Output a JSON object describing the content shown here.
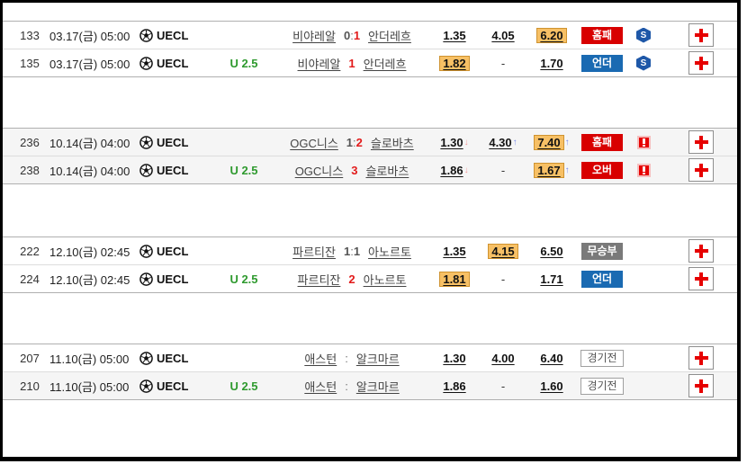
{
  "colors": {
    "badge_red": "#d80000",
    "badge_blue": "#1a6ab2",
    "badge_gray": "#7a7a7a",
    "odds_highlight_bg": "#f7c065",
    "odds_highlight_border": "#cf9330",
    "up_arrow": "#7d8ceb",
    "down_arrow": "#f39b9b",
    "score_red": "#e21b1b",
    "handicap_green": "#2f9a2f",
    "s_icon_blue": "#1f58a8",
    "alert_icon_red": "#e60000",
    "plus_red": "#e60000"
  },
  "icons": {
    "league": "soccer-ball-icon",
    "status_s": "S",
    "status_alert": "!",
    "add": "plus-icon",
    "up": "↑",
    "down": "↓"
  },
  "table": {
    "groups": [
      {
        "rows": [
          {
            "id": "133",
            "datetime": "03.17(금) 05:00",
            "league": "UECL",
            "handicap": "",
            "home": "비야레알",
            "away": "안더레흐",
            "score": [
              {
                "t": "0",
                "red": false
              },
              {
                "t": ":",
                "sep": true
              },
              {
                "t": "1",
                "red": true
              }
            ],
            "odds": [
              {
                "v": "1.35"
              },
              {
                "v": "4.05"
              },
              {
                "v": "6.20",
                "hl": true
              }
            ],
            "result": {
              "label": "홈패",
              "variant": "red"
            },
            "flag": "S",
            "shade": false
          },
          {
            "id": "135",
            "datetime": "03.17(금) 05:00",
            "league": "UECL",
            "handicap": "U 2.5",
            "home": "비야레알",
            "away": "안더레흐",
            "score": [
              {
                "t": "1",
                "red": true
              }
            ],
            "odds": [
              {
                "v": "1.82",
                "hl": true
              },
              {
                "v": "-",
                "dash": true
              },
              {
                "v": "1.70"
              }
            ],
            "result": {
              "label": "언더",
              "variant": "blue"
            },
            "flag": "S",
            "shade": false
          }
        ]
      },
      {
        "rows": [
          {
            "id": "236",
            "datetime": "10.14(금) 04:00",
            "league": "UECL",
            "handicap": "",
            "home": "OGC니스",
            "away": "슬로바츠",
            "score": [
              {
                "t": "1",
                "red": false
              },
              {
                "t": ":",
                "sep": true
              },
              {
                "t": "2",
                "red": true
              }
            ],
            "odds": [
              {
                "v": "1.30",
                "arrow": "down"
              },
              {
                "v": "4.30",
                "arrow": "up"
              },
              {
                "v": "7.40",
                "hl": true,
                "arrow": "up"
              }
            ],
            "result": {
              "label": "홈패",
              "variant": "red"
            },
            "flag": "!",
            "shade": true
          },
          {
            "id": "238",
            "datetime": "10.14(금) 04:00",
            "league": "UECL",
            "handicap": "U 2.5",
            "home": "OGC니스",
            "away": "슬로바츠",
            "score": [
              {
                "t": "3",
                "red": true
              }
            ],
            "odds": [
              {
                "v": "1.86",
                "arrow": "down"
              },
              {
                "v": "-",
                "dash": true
              },
              {
                "v": "1.67",
                "hl": true,
                "arrow": "up"
              }
            ],
            "result": {
              "label": "오버",
              "variant": "red"
            },
            "flag": "!",
            "shade": true
          }
        ]
      },
      {
        "rows": [
          {
            "id": "222",
            "datetime": "12.10(금) 02:45",
            "league": "UECL",
            "handicap": "",
            "home": "파르티잔",
            "away": "아노르토",
            "score": [
              {
                "t": "1",
                "red": false
              },
              {
                "t": ":",
                "sep": true
              },
              {
                "t": "1",
                "red": false
              }
            ],
            "odds": [
              {
                "v": "1.35"
              },
              {
                "v": "4.15",
                "hl": true
              },
              {
                "v": "6.50"
              }
            ],
            "result": {
              "label": "무승부",
              "variant": "gray"
            },
            "flag": "",
            "shade": false
          },
          {
            "id": "224",
            "datetime": "12.10(금) 02:45",
            "league": "UECL",
            "handicap": "U 2.5",
            "home": "파르티잔",
            "away": "아노르토",
            "score": [
              {
                "t": "2",
                "red": true
              }
            ],
            "odds": [
              {
                "v": "1.81",
                "hl": true
              },
              {
                "v": "-",
                "dash": true
              },
              {
                "v": "1.71"
              }
            ],
            "result": {
              "label": "언더",
              "variant": "blue"
            },
            "flag": "",
            "shade": false
          }
        ]
      },
      {
        "rows": [
          {
            "id": "207",
            "datetime": "11.10(금) 05:00",
            "league": "UECL",
            "handicap": "",
            "home": "애스턴",
            "away": "알크마르",
            "score": [
              {
                "t": ":",
                "sep": true
              }
            ],
            "odds": [
              {
                "v": "1.30"
              },
              {
                "v": "4.00"
              },
              {
                "v": "6.40"
              }
            ],
            "result": {
              "label": "경기전",
              "variant": "outline"
            },
            "flag": "",
            "shade": false
          },
          {
            "id": "210",
            "datetime": "11.10(금) 05:00",
            "league": "UECL",
            "handicap": "U 2.5",
            "home": "애스턴",
            "away": "알크마르",
            "score": [
              {
                "t": ":",
                "sep": true
              }
            ],
            "odds": [
              {
                "v": "1.86"
              },
              {
                "v": "-",
                "dash": true
              },
              {
                "v": "1.60"
              }
            ],
            "result": {
              "label": "경기전",
              "variant": "outline"
            },
            "flag": "",
            "shade": true
          }
        ]
      }
    ]
  }
}
